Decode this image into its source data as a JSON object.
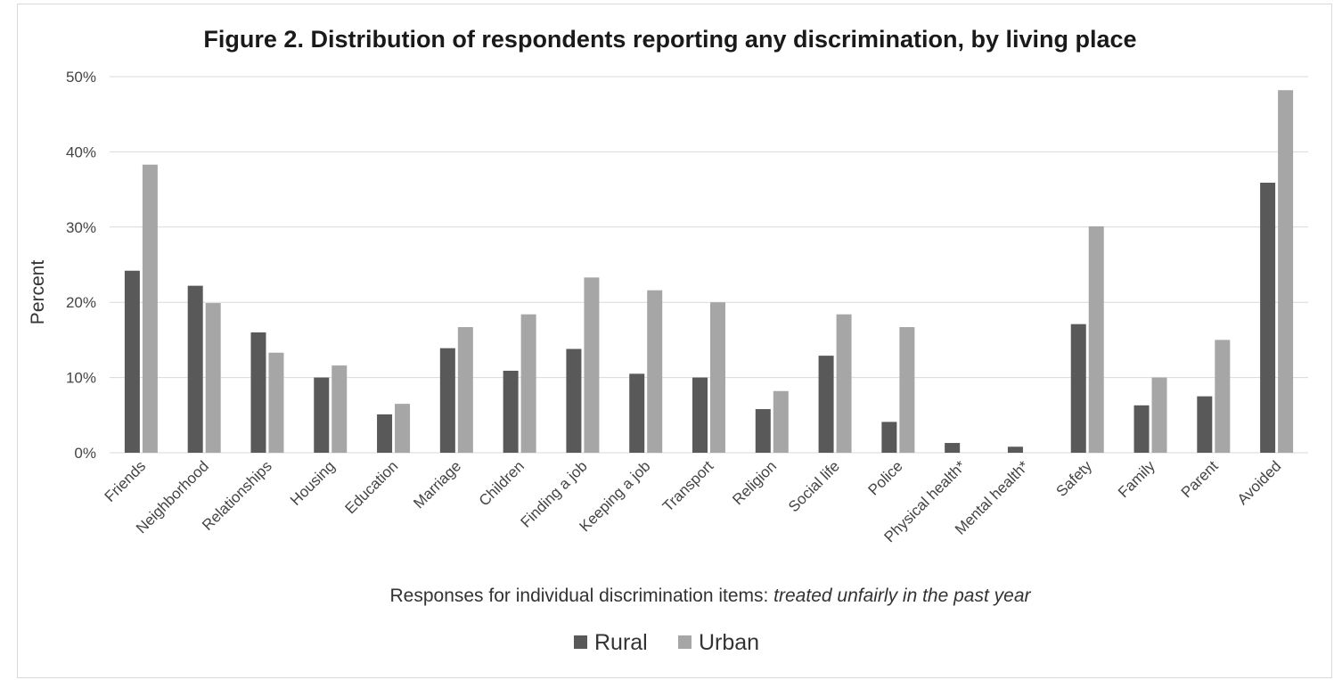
{
  "chart_data": {
    "type": "bar",
    "title": "Figure 2. Distribution of respondents reporting any discrimination, by living place",
    "ylabel": "Percent",
    "xlabel_prefix": "Responses for individual discrimination items: ",
    "xlabel_italic": "treated unfairly in the past year",
    "ylim": [
      0,
      50
    ],
    "yticks": [
      "0%",
      "10%",
      "20%",
      "30%",
      "40%",
      "50%"
    ],
    "ytick_values": [
      0,
      10,
      20,
      30,
      40,
      50
    ],
    "grid": true,
    "legend_position": "bottom",
    "categories": [
      "Friends",
      "Neighborhood",
      "Relationships",
      "Housing",
      "Education",
      "Marriage",
      "Children",
      "Finding a job",
      "Keeping a job",
      "Transport",
      "Religion",
      "Social life",
      "Police",
      "Physical health*",
      "Mental health*",
      "Safety",
      "Family",
      "Parent",
      "Avoided"
    ],
    "series": [
      {
        "name": "Rural",
        "color": "#595959",
        "values": [
          24.2,
          22.2,
          16.0,
          10.0,
          5.1,
          13.9,
          10.9,
          13.8,
          10.5,
          10.0,
          5.8,
          12.9,
          4.1,
          1.3,
          0.8,
          17.1,
          6.3,
          7.5,
          35.9
        ]
      },
      {
        "name": "Urban",
        "color": "#a6a6a6",
        "values": [
          38.3,
          19.9,
          13.3,
          11.6,
          6.5,
          16.7,
          18.4,
          23.3,
          21.6,
          20.0,
          8.2,
          18.4,
          16.7,
          null,
          null,
          30.1,
          10.0,
          15.0,
          48.2
        ]
      }
    ]
  }
}
